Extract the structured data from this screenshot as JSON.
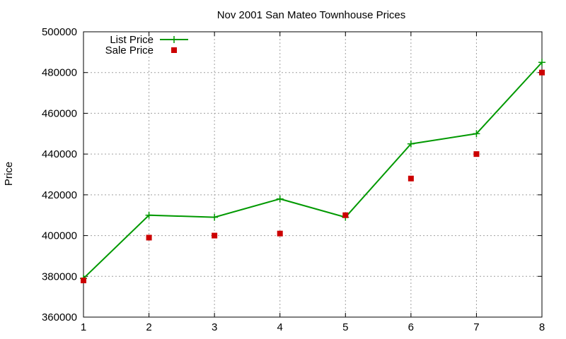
{
  "chart_data": {
    "type": "line",
    "title": "Nov 2001 San Mateo Townhouse Prices",
    "xlabel": "",
    "ylabel": "Price",
    "xlim": [
      1,
      8
    ],
    "ylim": [
      360000,
      500000
    ],
    "x_ticks": [
      "1",
      "2",
      "3",
      "4",
      "5",
      "6",
      "7",
      "8"
    ],
    "y_ticks": [
      "360000",
      "380000",
      "400000",
      "420000",
      "440000",
      "460000",
      "480000",
      "500000"
    ],
    "grid": true,
    "legend_position": "top-left",
    "x": [
      1,
      2,
      3,
      4,
      5,
      6,
      7,
      8
    ],
    "series": [
      {
        "name": "List Price",
        "style": "line with plus markers",
        "color": "#009900",
        "values": [
          379000,
          410000,
          409000,
          418000,
          409000,
          445000,
          450000,
          485000
        ]
      },
      {
        "name": "Sale Price",
        "style": "square markers",
        "color": "#cc0000",
        "values": [
          378000,
          399000,
          400000,
          401000,
          410000,
          428000,
          440000,
          480000
        ]
      }
    ]
  }
}
